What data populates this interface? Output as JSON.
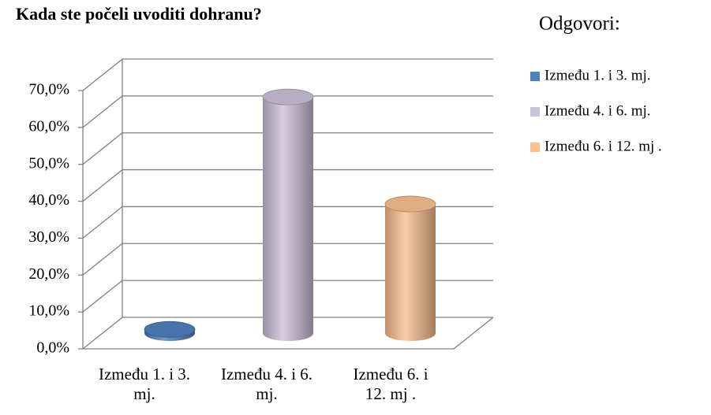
{
  "chart_data": {
    "type": "bar3d",
    "title": "Kada ste počeli uvoditi dohranu?",
    "legend_title": "Odgovori:",
    "categories": [
      "Između 1. i 3. mj.",
      "Između 4. i 6. mj.",
      "Između 6. i 12. mj ."
    ],
    "values": [
      1,
      64,
      35
    ],
    "colors": [
      "#4f81bd",
      "#ccc1da",
      "#fac090"
    ],
    "ylim": [
      0,
      70
    ],
    "yticks": [
      {
        "value": 0,
        "label": "0,0%"
      },
      {
        "value": 10,
        "label": "10,0%"
      },
      {
        "value": 20,
        "label": "20,0%"
      },
      {
        "value": 30,
        "label": "30,0%"
      },
      {
        "value": 40,
        "label": "40,0%"
      },
      {
        "value": 50,
        "label": "50,0%"
      },
      {
        "value": 60,
        "label": "60,0%"
      },
      {
        "value": 70,
        "label": "70,0%"
      }
    ],
    "grid": true,
    "legend": "right"
  }
}
